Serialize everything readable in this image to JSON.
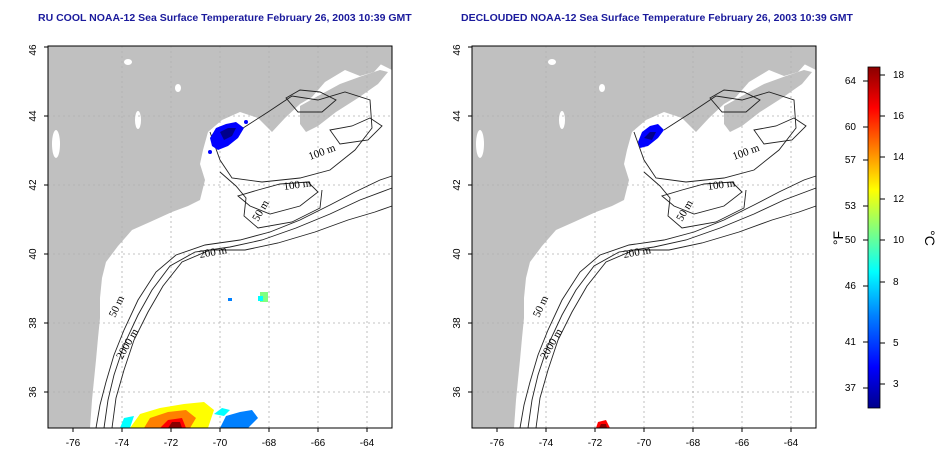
{
  "titles": {
    "left": "RU COOL NOAA-12 Sea Surface Temperature February 26, 2003 10:39 GMT",
    "right": "DECLOUDED NOAA-12 Sea Surface Temperature February 26, 2003 10:39 GMT"
  },
  "maps": {
    "lon_ticks": [
      "-76",
      "-74",
      "-72",
      "-70",
      "-68",
      "-66",
      "-64"
    ],
    "lat_ticks": [
      "36",
      "38",
      "40",
      "42",
      "44",
      "46"
    ],
    "contour_labels": [
      "100 m",
      "100 m",
      "50 m",
      "200 m",
      "50 m",
      "2000 m"
    ]
  },
  "colorbar": {
    "fahrenheit_ticks": [
      "64",
      "60",
      "57",
      "53",
      "50",
      "46",
      "41",
      "37"
    ],
    "celsius_ticks": [
      "18",
      "16",
      "14",
      "12",
      "10",
      "8",
      "5",
      "3"
    ],
    "fahrenheit_label": "°F",
    "celsius_label": "°C",
    "colors": [
      "#00008b",
      "#0000ff",
      "#0080ff",
      "#00ffff",
      "#80ff80",
      "#ffff00",
      "#ff8000",
      "#ff0000",
      "#8b0000"
    ]
  },
  "style": {
    "land_color": "#c0c0c0",
    "title_color": "#1a1a9c",
    "grid_color": "#b0b0b0"
  }
}
